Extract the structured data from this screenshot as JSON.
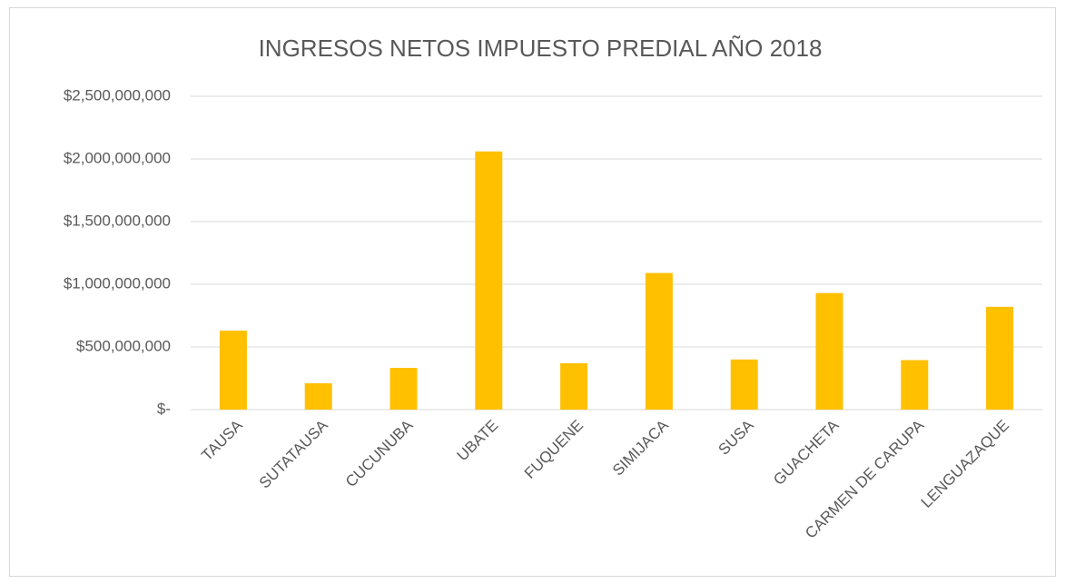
{
  "chart_data": {
    "type": "bar",
    "title": "INGRESOS NETOS IMPUESTO  PREDIAL AÑO 2018",
    "categories": [
      "TAUSA",
      "SUTATAUSA",
      "CUCUNUBA",
      "UBATE",
      "FUQUENE",
      "SIMIJACA",
      "SUSA",
      "GUACHETA",
      "CARMEN DE CARUPA",
      "LENGUAZAQUE"
    ],
    "values": [
      630000000,
      210000000,
      333000000,
      2060000000,
      370000000,
      1090000000,
      400000000,
      930000000,
      395000000,
      820000000
    ],
    "color": "#ffc000",
    "ylim": [
      0,
      2500000000
    ],
    "yticks": [
      {
        "value": 0,
        "label": "$-"
      },
      {
        "value": 500000000,
        "label": "$500,000,000"
      },
      {
        "value": 1000000000,
        "label": "$1,000,000,000"
      },
      {
        "value": 1500000000,
        "label": "$1,500,000,000"
      },
      {
        "value": 2000000000,
        "label": "$2,000,000,000"
      },
      {
        "value": 2500000000,
        "label": "$2,500,000,000"
      }
    ],
    "grid": true
  }
}
